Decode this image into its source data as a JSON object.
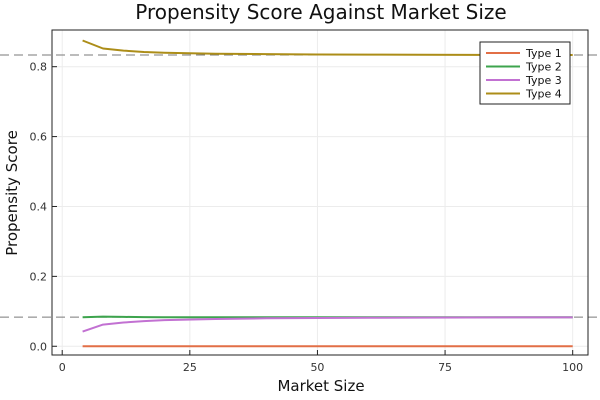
{
  "chart_data": {
    "type": "line",
    "title": "Propensity Score Against Market Size",
    "xlabel": "Market Size",
    "ylabel": "Propensity Score",
    "xlim": [
      -2,
      103
    ],
    "ylim": [
      -0.025,
      0.905
    ],
    "xticks": [
      0,
      25,
      50,
      75,
      100
    ],
    "yticks": [
      0.0,
      0.2,
      0.4,
      0.6,
      0.8
    ],
    "xtick_labels": [
      "0",
      "25",
      "50",
      "75",
      "100"
    ],
    "ytick_labels": [
      "0.0",
      "0.2",
      "0.4",
      "0.6",
      "0.8"
    ],
    "grid": true,
    "legend_position": "top-right",
    "reference_lines": [
      0.0833,
      0.8333
    ],
    "x": [
      4,
      8,
      12,
      16,
      20,
      30,
      40,
      50,
      60,
      70,
      80,
      90,
      100
    ],
    "series": [
      {
        "name": "Type 1",
        "color": "#e26f46",
        "values": [
          0.0,
          0.0,
          0.0,
          0.0,
          0.0,
          0.0,
          0.0,
          0.0,
          0.0,
          0.0,
          0.0,
          0.0,
          0.0
        ]
      },
      {
        "name": "Type 2",
        "color": "#3da44d",
        "values": [
          0.083,
          0.085,
          0.084,
          0.0835,
          0.0833,
          0.0833,
          0.0833,
          0.0833,
          0.0833,
          0.0833,
          0.0833,
          0.0833,
          0.0833
        ]
      },
      {
        "name": "Type 3",
        "color": "#c271d2",
        "values": [
          0.042,
          0.062,
          0.068,
          0.072,
          0.075,
          0.078,
          0.08,
          0.081,
          0.0815,
          0.082,
          0.0822,
          0.0825,
          0.0827
        ]
      },
      {
        "name": "Type 4",
        "color": "#ac8d18",
        "values": [
          0.875,
          0.852,
          0.846,
          0.842,
          0.84,
          0.837,
          0.836,
          0.835,
          0.8345,
          0.834,
          0.8338,
          0.8336,
          0.8335
        ]
      }
    ]
  }
}
